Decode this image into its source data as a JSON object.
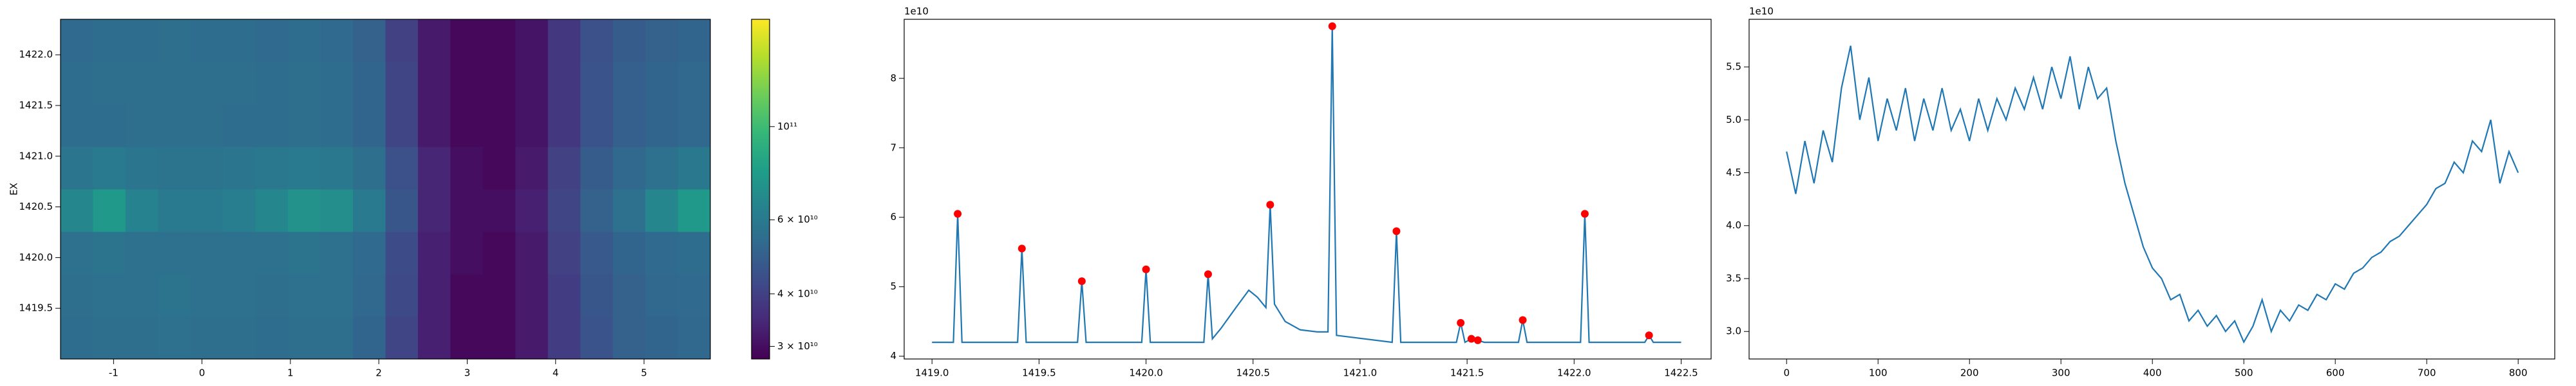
{
  "chart_data": [
    {
      "type": "heatmap",
      "ylabel": "EX",
      "origin": "lower",
      "xlim": [
        -1.6,
        5.75
      ],
      "ylim": [
        1419.0,
        1422.35
      ],
      "xticks": [
        -1,
        0,
        1,
        2,
        3,
        4,
        5
      ],
      "yticks": [
        1419.5,
        {
          "value": 1420,
          "label": "1420.0"
        },
        1420.5,
        {
          "value": 1421,
          "label": "1421.0"
        },
        1421.5,
        {
          "value": 1422,
          "label": "1422.0"
        }
      ],
      "clim": [
        28000000000.0,
        180000000000.0
      ],
      "colorbar_scale": "log",
      "colorbar_ticks": [
        {
          "value": 30000000000.0,
          "label": "3 × 10¹⁰"
        },
        {
          "value": 40000000000.0,
          "label": "4 × 10¹⁰"
        },
        {
          "value": 60000000000.0,
          "label": "6 × 10¹⁰"
        },
        {
          "value": 100000000000.0,
          "label": "10¹¹"
        }
      ],
      "z": [
        [
          54000000000.0,
          55000000000.0,
          55000000000.0,
          56000000000.0,
          55000000000.0,
          55000000000.0,
          54000000000.0,
          55000000000.0,
          55000000000.0,
          51000000000.0,
          41000000000.0,
          33000000000.0,
          29000000000.0,
          29000000000.0,
          32000000000.0,
          39000000000.0,
          45000000000.0,
          50000000000.0,
          51000000000.0,
          52000000000.0
        ],
        [
          55000000000.0,
          56000000000.0,
          56000000000.0,
          57000000000.0,
          56000000000.0,
          56000000000.0,
          55000000000.0,
          56000000000.0,
          56000000000.0,
          52000000000.0,
          42000000000.0,
          33000000000.0,
          29000000000.0,
          29000000000.0,
          32000000000.0,
          39000000000.0,
          46000000000.0,
          50000000000.0,
          52000000000.0,
          53000000000.0
        ],
        [
          56000000000.0,
          57000000000.0,
          56000000000.0,
          56000000000.0,
          56000000000.0,
          56000000000.0,
          56000000000.0,
          57000000000.0,
          56000000000.0,
          53000000000.0,
          43000000000.0,
          33000000000.0,
          30000000000.0,
          29000000000.0,
          32000000000.0,
          40000000000.0,
          47000000000.0,
          51000000000.0,
          53000000000.0,
          54000000000.0
        ],
        [
          66000000000.0,
          76000000000.0,
          64000000000.0,
          60000000000.0,
          60000000000.0,
          62000000000.0,
          66000000000.0,
          72000000000.0,
          70000000000.0,
          60000000000.0,
          46000000000.0,
          34000000000.0,
          30000000000.0,
          30000000000.0,
          33000000000.0,
          41000000000.0,
          50000000000.0,
          56000000000.0,
          66000000000.0,
          76000000000.0
        ],
        [
          58000000000.0,
          60000000000.0,
          58000000000.0,
          57000000000.0,
          57000000000.0,
          58000000000.0,
          59000000000.0,
          60000000000.0,
          59000000000.0,
          55000000000.0,
          44000000000.0,
          34000000000.0,
          30000000000.0,
          29000000000.0,
          32000000000.0,
          40000000000.0,
          48000000000.0,
          52000000000.0,
          56000000000.0,
          59000000000.0
        ],
        [
          54000000000.0,
          54000000000.0,
          55000000000.0,
          55000000000.0,
          55000000000.0,
          54000000000.0,
          54000000000.0,
          55000000000.0,
          54000000000.0,
          51000000000.0,
          41000000000.0,
          32000000000.0,
          29000000000.0,
          29000000000.0,
          31000000000.0,
          38000000000.0,
          45000000000.0,
          49000000000.0,
          51000000000.0,
          52000000000.0
        ],
        [
          54000000000.0,
          55000000000.0,
          55000000000.0,
          55000000000.0,
          55000000000.0,
          55000000000.0,
          54000000000.0,
          55000000000.0,
          54000000000.0,
          51000000000.0,
          41000000000.0,
          32000000000.0,
          29000000000.0,
          29000000000.0,
          31000000000.0,
          38000000000.0,
          45000000000.0,
          49000000000.0,
          51000000000.0,
          52000000000.0
        ],
        [
          53000000000.0,
          54000000000.0,
          54000000000.0,
          55000000000.0,
          54000000000.0,
          54000000000.0,
          53000000000.0,
          54000000000.0,
          53000000000.0,
          50000000000.0,
          40000000000.0,
          32000000000.0,
          29000000000.0,
          29000000000.0,
          31000000000.0,
          38000000000.0,
          44000000000.0,
          48000000000.0,
          50000000000.0,
          51000000000.0
        ]
      ]
    },
    {
      "type": "line",
      "offset_text": "1e10",
      "xlim": [
        1418.87,
        1422.64
      ],
      "ylim": [
        3.96,
        8.85
      ],
      "xticks": [
        {
          "value": 1419,
          "label": "1419.0"
        },
        1419.5,
        {
          "value": 1420,
          "label": "1420.0"
        },
        1420.5,
        {
          "value": 1421,
          "label": "1421.0"
        },
        1421.5,
        {
          "value": 1422,
          "label": "1422.0"
        },
        1422.5
      ],
      "yticks": [
        4,
        5,
        6,
        7,
        8
      ],
      "series": [
        {
          "color": "#1f77b4",
          "x": [
            1419.0,
            1419.1,
            1419.12,
            1419.14,
            1419.4,
            1419.42,
            1419.44,
            1419.68,
            1419.7,
            1419.72,
            1419.98,
            1420.0,
            1420.02,
            1420.27,
            1420.29,
            1420.31,
            1420.35,
            1420.42,
            1420.48,
            1420.52,
            1420.56,
            1420.58,
            1420.6,
            1420.65,
            1420.72,
            1420.8,
            1420.85,
            1420.87,
            1420.89,
            1421.15,
            1421.17,
            1421.19,
            1421.45,
            1421.47,
            1421.49,
            1421.52,
            1421.55,
            1421.58,
            1421.74,
            1421.76,
            1421.78,
            1422.03,
            1422.05,
            1422.07,
            1422.33,
            1422.35,
            1422.37,
            1422.5
          ],
          "values": [
            4.2,
            4.2,
            6.05,
            4.2,
            4.2,
            5.55,
            4.2,
            4.2,
            5.08,
            4.2,
            4.2,
            5.25,
            4.2,
            4.2,
            5.18,
            4.25,
            4.4,
            4.7,
            4.95,
            4.85,
            4.7,
            6.18,
            4.75,
            4.5,
            4.38,
            4.35,
            4.35,
            8.75,
            4.3,
            4.2,
            5.8,
            4.2,
            4.2,
            4.48,
            4.2,
            4.25,
            4.23,
            4.2,
            4.2,
            4.52,
            4.2,
            4.2,
            6.05,
            4.2,
            4.2,
            4.3,
            4.2,
            4.2
          ]
        },
        {
          "color": "#ff0000",
          "marker": "o",
          "x": [
            1419.12,
            1419.42,
            1419.7,
            1420.0,
            1420.29,
            1420.58,
            1420.87,
            1421.17,
            1421.47,
            1421.52,
            1421.55,
            1421.76,
            1422.05,
            1422.35
          ],
          "values": [
            6.05,
            5.55,
            5.08,
            5.25,
            5.18,
            6.18,
            8.75,
            5.8,
            4.48,
            4.25,
            4.23,
            4.52,
            6.05,
            4.3
          ]
        }
      ]
    },
    {
      "type": "line",
      "offset_text": "1e10",
      "xlim": [
        -41,
        840
      ],
      "ylim": [
        2.74,
        5.95
      ],
      "xticks": [
        0,
        100,
        200,
        300,
        400,
        500,
        600,
        700,
        800
      ],
      "yticks": [
        {
          "value": 3,
          "label": "3.0"
        },
        3.5,
        {
          "value": 4,
          "label": "4.0"
        },
        4.5,
        {
          "value": 5,
          "label": "5.0"
        },
        5.5
      ],
      "series": [
        {
          "color": "#1f77b4",
          "x": [
            0,
            10,
            20,
            30,
            40,
            50,
            60,
            70,
            80,
            90,
            100,
            110,
            120,
            130,
            140,
            150,
            160,
            170,
            180,
            190,
            200,
            210,
            220,
            230,
            240,
            250,
            260,
            270,
            280,
            290,
            300,
            310,
            320,
            330,
            340,
            350,
            360,
            370,
            380,
            390,
            400,
            410,
            420,
            430,
            440,
            450,
            460,
            470,
            480,
            490,
            500,
            510,
            520,
            530,
            540,
            550,
            560,
            570,
            580,
            590,
            600,
            610,
            620,
            630,
            640,
            650,
            660,
            670,
            680,
            690,
            700,
            710,
            720,
            730,
            740,
            750,
            760,
            770,
            780,
            790,
            800
          ],
          "values": [
            4.7,
            4.3,
            4.8,
            4.4,
            4.9,
            4.6,
            5.3,
            5.7,
            5.0,
            5.4,
            4.8,
            5.2,
            4.9,
            5.3,
            4.8,
            5.2,
            4.9,
            5.3,
            4.9,
            5.1,
            4.8,
            5.2,
            4.9,
            5.2,
            5.0,
            5.3,
            5.1,
            5.4,
            5.1,
            5.5,
            5.2,
            5.6,
            5.1,
            5.5,
            5.2,
            5.3,
            4.8,
            4.4,
            4.1,
            3.8,
            3.6,
            3.5,
            3.3,
            3.35,
            3.1,
            3.2,
            3.05,
            3.15,
            3.0,
            3.1,
            2.9,
            3.05,
            3.3,
            3.0,
            3.2,
            3.1,
            3.25,
            3.2,
            3.35,
            3.3,
            3.45,
            3.4,
            3.55,
            3.6,
            3.7,
            3.75,
            3.85,
            3.9,
            4.0,
            4.1,
            4.2,
            4.35,
            4.4,
            4.6,
            4.5,
            4.8,
            4.7,
            5.0,
            4.4,
            4.7,
            4.5
          ]
        }
      ]
    }
  ]
}
